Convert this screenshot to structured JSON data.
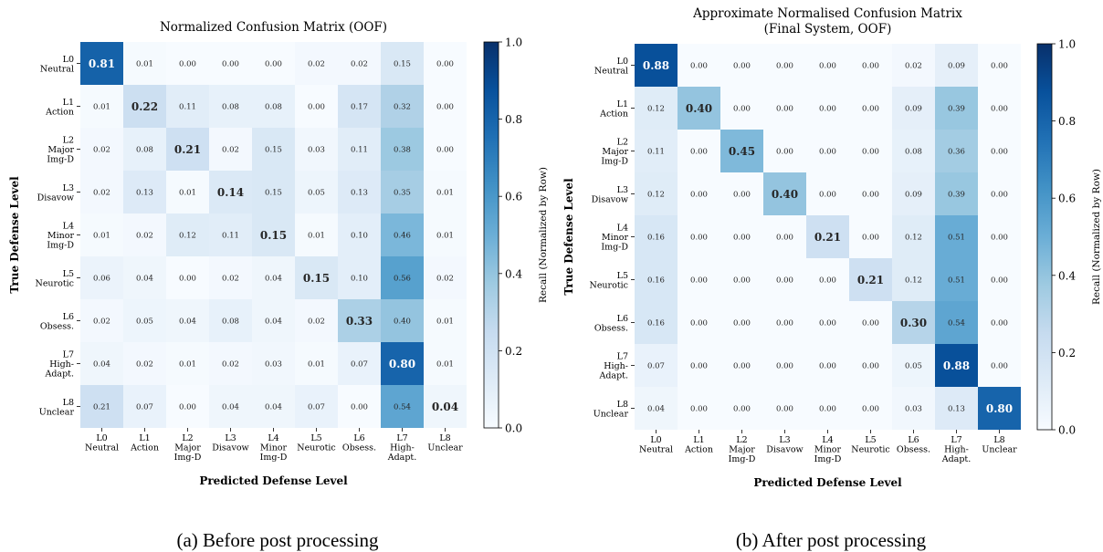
{
  "labels": {
    "rows": [
      [
        "L0",
        "Neutral"
      ],
      [
        "L1",
        "Action"
      ],
      [
        "L2",
        "Major",
        "Img-D"
      ],
      [
        "L3",
        "Disavow"
      ],
      [
        "L4",
        "Minor",
        "Img-D"
      ],
      [
        "L5",
        "Neurotic"
      ],
      [
        "L6",
        "Obsess."
      ],
      [
        "L7",
        "High-",
        "Adapt."
      ],
      [
        "L8",
        "Unclear"
      ]
    ],
    "cols": [
      [
        "L0",
        "Neutral"
      ],
      [
        "L1",
        "Action"
      ],
      [
        "L2",
        "Major",
        "Img-D"
      ],
      [
        "L3",
        "Disavow"
      ],
      [
        "L4",
        "Minor",
        "Img-D"
      ],
      [
        "L5",
        "Neurotic"
      ],
      [
        "L6",
        "Obsess."
      ],
      [
        "L7",
        "High-",
        "Adapt."
      ],
      [
        "L8",
        "Unclear"
      ]
    ]
  },
  "colors": {
    "cmap": [
      "#f7fbff",
      "#deebf7",
      "#c6dbef",
      "#9ecae1",
      "#6baed6",
      "#4292c6",
      "#2171b5",
      "#08519c",
      "#08306b"
    ]
  },
  "chart_data": [
    {
      "type": "heatmap",
      "title": "Normalized Confusion Matrix (OOF)",
      "xlabel": "Predicted Defense Level",
      "ylabel": "True Defense Level",
      "colorbar_label": "Recall (Normalized by Row)",
      "colorbar_ticks": [
        "0.0",
        "0.2",
        "0.4",
        "0.6",
        "0.8",
        "1.0"
      ],
      "caption": "(a) Before post processing",
      "values": [
        [
          0.81,
          0.01,
          0.0,
          0.0,
          0.0,
          0.02,
          0.02,
          0.15,
          0.0
        ],
        [
          0.01,
          0.22,
          0.11,
          0.08,
          0.08,
          0.0,
          0.17,
          0.32,
          0.0
        ],
        [
          0.02,
          0.08,
          0.21,
          0.02,
          0.15,
          0.03,
          0.11,
          0.38,
          0.0
        ],
        [
          0.02,
          0.13,
          0.01,
          0.14,
          0.15,
          0.05,
          0.13,
          0.35,
          0.01
        ],
        [
          0.01,
          0.02,
          0.12,
          0.11,
          0.15,
          0.01,
          0.1,
          0.46,
          0.01
        ],
        [
          0.06,
          0.04,
          0.0,
          0.02,
          0.04,
          0.15,
          0.1,
          0.56,
          0.02
        ],
        [
          0.02,
          0.05,
          0.04,
          0.08,
          0.04,
          0.02,
          0.33,
          0.4,
          0.01
        ],
        [
          0.04,
          0.02,
          0.01,
          0.02,
          0.03,
          0.01,
          0.07,
          0.8,
          0.01
        ],
        [
          0.21,
          0.07,
          0.0,
          0.04,
          0.04,
          0.07,
          0.0,
          0.54,
          0.04
        ]
      ]
    },
    {
      "type": "heatmap",
      "title": [
        "Approximate Normalised Confusion Matrix",
        "(Final System, OOF)"
      ],
      "xlabel": "Predicted Defense Level",
      "ylabel": "True Defense Level",
      "colorbar_label": "Recall (Normalized by Row)",
      "colorbar_ticks": [
        "0.0",
        "0.2",
        "0.4",
        "0.6",
        "0.8",
        "1.0"
      ],
      "caption": "(b) After post processing",
      "values": [
        [
          0.88,
          0.0,
          0.0,
          0.0,
          0.0,
          0.0,
          0.02,
          0.09,
          0.0
        ],
        [
          0.12,
          0.4,
          0.0,
          0.0,
          0.0,
          0.0,
          0.09,
          0.39,
          0.0
        ],
        [
          0.11,
          0.0,
          0.45,
          0.0,
          0.0,
          0.0,
          0.08,
          0.36,
          0.0
        ],
        [
          0.12,
          0.0,
          0.0,
          0.4,
          0.0,
          0.0,
          0.09,
          0.39,
          0.0
        ],
        [
          0.16,
          0.0,
          0.0,
          0.0,
          0.21,
          0.0,
          0.12,
          0.51,
          0.0
        ],
        [
          0.16,
          0.0,
          0.0,
          0.0,
          0.0,
          0.21,
          0.12,
          0.51,
          0.0
        ],
        [
          0.16,
          0.0,
          0.0,
          0.0,
          0.0,
          0.0,
          0.3,
          0.54,
          0.0
        ],
        [
          0.07,
          0.0,
          0.0,
          0.0,
          0.0,
          0.0,
          0.05,
          0.88,
          0.0
        ],
        [
          0.04,
          0.0,
          0.0,
          0.0,
          0.0,
          0.0,
          0.03,
          0.13,
          0.8
        ]
      ]
    }
  ]
}
